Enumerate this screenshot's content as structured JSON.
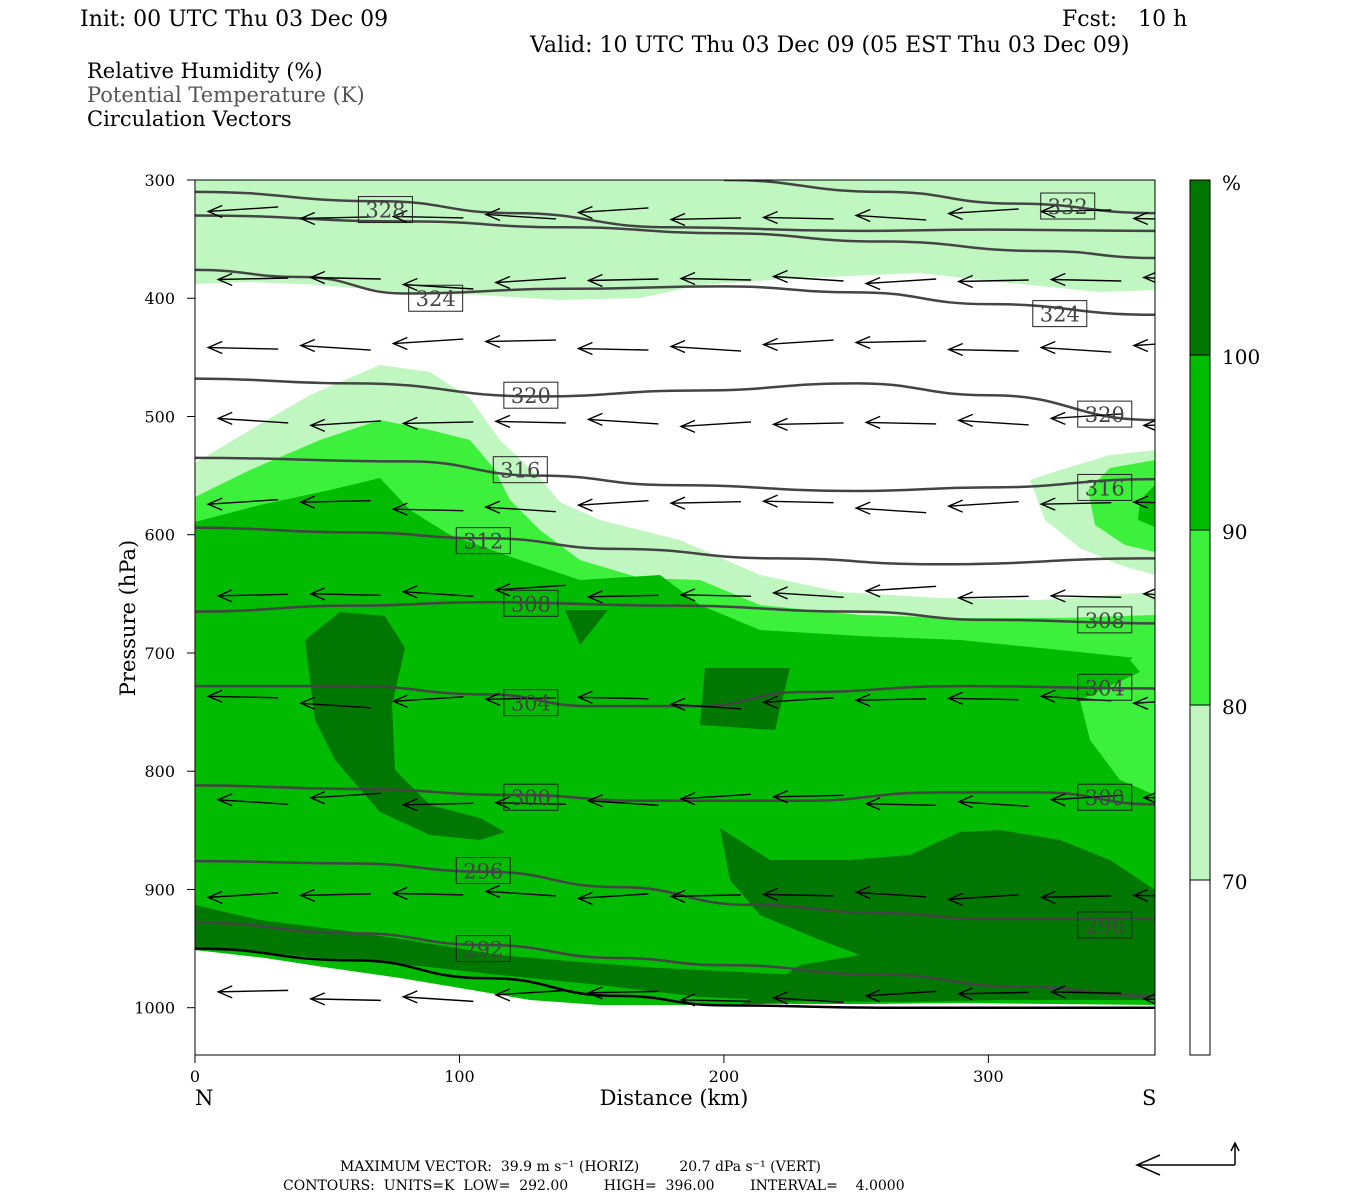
{
  "header": {
    "init": "Init: 00 UTC Thu 03 Dec 09",
    "fcst": "Fcst:   10 h",
    "valid": "Valid: 10 UTC Thu 03 Dec 09 (05 EST Thu 03 Dec 09)"
  },
  "legend_titles": {
    "rh": "Relative Humidity (%)",
    "theta": "Potential Temperature (K)",
    "vectors": "Circulation Vectors"
  },
  "colors": {
    "rh_70_80": "#c0f7c0",
    "rh_80_90": "#3cf03c",
    "rh_90_100": "#00bb00",
    "rh_100": "#007700",
    "contour": "#444444",
    "vector": "#000000"
  },
  "chart_data": {
    "type": "cross-section",
    "xlabel": "Distance (km)",
    "ylabel": "Pressure (hPa)",
    "xlim": [
      0,
      363
    ],
    "ylim": [
      300,
      1040
    ],
    "x_ticks": [
      "0",
      "100",
      "200",
      "300"
    ],
    "y_ticks": [
      "300",
      "400",
      "500",
      "600",
      "700",
      "800",
      "900",
      "1000"
    ],
    "x_end_labels": {
      "left": "N",
      "right": "S"
    },
    "colorbar": {
      "unit": "%",
      "levels": [
        "70",
        "80",
        "90",
        "100"
      ],
      "bands": [
        "#ffffff",
        "#c0f7c0",
        "#3cf03c",
        "#00bb00",
        "#007700"
      ]
    },
    "isentropes": [
      {
        "label": "328",
        "points": [
          [
            0,
            310
          ],
          [
            70,
            318
          ],
          [
            120,
            328
          ],
          [
            180,
            340
          ],
          [
            250,
            343
          ],
          [
            300,
            342
          ],
          [
            363,
            343
          ]
        ]
      },
      {
        "label": "332",
        "points": [
          [
            200,
            300
          ],
          [
            260,
            310
          ],
          [
            310,
            320
          ],
          [
            363,
            328
          ]
        ]
      },
      {
        "label": "",
        "points": [
          [
            0,
            330
          ],
          [
            80,
            335
          ],
          [
            140,
            340
          ],
          [
            200,
            345
          ],
          [
            260,
            352
          ],
          [
            320,
            360
          ],
          [
            363,
            366
          ]
        ]
      },
      {
        "label": "324",
        "points": [
          [
            0,
            376
          ],
          [
            40,
            382
          ],
          [
            80,
            396
          ],
          [
            140,
            392
          ],
          [
            200,
            390
          ],
          [
            250,
            395
          ],
          [
            300,
            405
          ],
          [
            363,
            414
          ]
        ]
      },
      {
        "label": "320",
        "points": [
          [
            0,
            468
          ],
          [
            60,
            472
          ],
          [
            130,
            483
          ],
          [
            190,
            478
          ],
          [
            250,
            472
          ],
          [
            300,
            482
          ],
          [
            363,
            503
          ]
        ]
      },
      {
        "label": "316",
        "points": [
          [
            0,
            535
          ],
          [
            80,
            538
          ],
          [
            130,
            550
          ],
          [
            180,
            558
          ],
          [
            250,
            563
          ],
          [
            300,
            560
          ],
          [
            363,
            553
          ]
        ]
      },
      {
        "label": "312",
        "points": [
          [
            0,
            594
          ],
          [
            60,
            598
          ],
          [
            110,
            603
          ],
          [
            160,
            612
          ],
          [
            220,
            620
          ],
          [
            280,
            625
          ],
          [
            363,
            620
          ]
        ]
      },
      {
        "label": "308",
        "points": [
          [
            0,
            665
          ],
          [
            60,
            660
          ],
          [
            110,
            657
          ],
          [
            180,
            660
          ],
          [
            250,
            665
          ],
          [
            300,
            672
          ],
          [
            363,
            675
          ]
        ]
      },
      {
        "label": "304",
        "points": [
          [
            0,
            728
          ],
          [
            60,
            728
          ],
          [
            110,
            735
          ],
          [
            150,
            745
          ],
          [
            190,
            745
          ],
          [
            230,
            733
          ],
          [
            290,
            728
          ],
          [
            363,
            730
          ]
        ]
      },
      {
        "label": "300",
        "points": [
          [
            0,
            812
          ],
          [
            60,
            815
          ],
          [
            120,
            820
          ],
          [
            170,
            825
          ],
          [
            230,
            825
          ],
          [
            280,
            818
          ],
          [
            320,
            818
          ],
          [
            363,
            828
          ]
        ]
      },
      {
        "label": "296",
        "points": [
          [
            0,
            876
          ],
          [
            60,
            878
          ],
          [
            110,
            885
          ],
          [
            160,
            898
          ],
          [
            210,
            913
          ],
          [
            260,
            920
          ],
          [
            300,
            925
          ],
          [
            363,
            925
          ]
        ]
      },
      {
        "label": "292",
        "points": [
          [
            0,
            928
          ],
          [
            60,
            937
          ],
          [
            110,
            947
          ],
          [
            160,
            958
          ],
          [
            200,
            964
          ],
          [
            260,
            972
          ],
          [
            310,
            982
          ],
          [
            363,
            990
          ]
        ]
      },
      {
        "label": "",
        "points": [
          [
            0,
            950
          ],
          [
            60,
            960
          ],
          [
            110,
            975
          ],
          [
            160,
            990
          ],
          [
            200,
            998
          ],
          [
            260,
            1000
          ],
          [
            363,
            1000
          ]
        ]
      }
    ],
    "label_positions": [
      {
        "label": "328",
        "x": 72,
        "p": 325
      },
      {
        "label": "332",
        "x": 330,
        "p": 322
      },
      {
        "label": "324",
        "x": 91,
        "p": 400
      },
      {
        "label": "324",
        "x": 327,
        "p": 413
      },
      {
        "label": "320",
        "x": 127,
        "p": 482
      },
      {
        "label": "320",
        "x": 344,
        "p": 498
      },
      {
        "label": "316",
        "x": 123,
        "p": 545
      },
      {
        "label": "316",
        "x": 344,
        "p": 560
      },
      {
        "label": "312",
        "x": 109,
        "p": 605
      },
      {
        "label": "308",
        "x": 127,
        "p": 658
      },
      {
        "label": "308",
        "x": 344,
        "p": 672
      },
      {
        "label": "304",
        "x": 127,
        "p": 742
      },
      {
        "label": "304",
        "x": 344,
        "p": 729
      },
      {
        "label": "300",
        "x": 127,
        "p": 822
      },
      {
        "label": "300",
        "x": 344,
        "p": 822
      },
      {
        "label": "296",
        "x": 109,
        "p": 884
      },
      {
        "label": "296",
        "x": 344,
        "p": 930
      },
      {
        "label": "292",
        "x": 109,
        "p": 950
      }
    ],
    "vector_rows": [
      330,
      385,
      440,
      505,
      575,
      650,
      740,
      825,
      905,
      990
    ],
    "vector_cols": [
      5,
      40,
      75,
      110,
      145,
      180,
      215,
      250,
      285,
      320,
      355
    ]
  },
  "footer": {
    "line1": "MAXIMUM VECTOR:  39.9 m s⁻¹ (HORIZ)         20.7 dPa s⁻¹ (VERT)",
    "line2": "CONTOURS:  UNITS=K  LOW=  292.00        HIGH=  396.00        INTERVAL=    4.0000"
  }
}
